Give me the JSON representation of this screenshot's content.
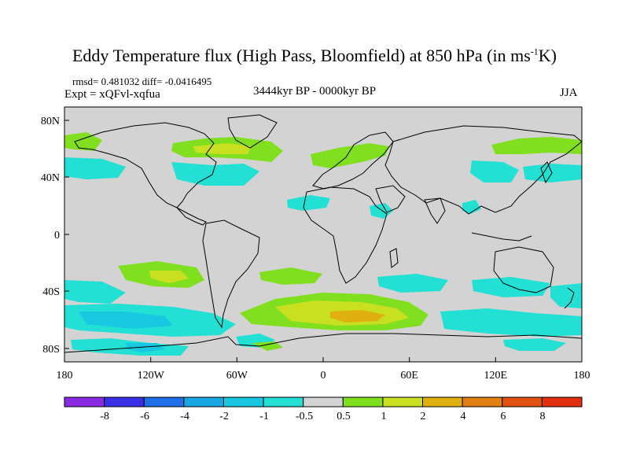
{
  "header": {
    "title": "Eddy Temperature flux (High Pass, Bloomfield) at 850 hPa (in ms",
    "title_sup": "-1",
    "title_end": "K)",
    "stats": "rmsd= 0.481032 diff= -0.0416495",
    "expt": "Expt = xQFvl-xqfua",
    "period": "3444kyr BP - 0000kyr BP",
    "season": "JJA"
  },
  "axes": {
    "x_ticks": [
      "180",
      "120W",
      "60W",
      "0",
      "60E",
      "120E",
      "180"
    ],
    "y_ticks": [
      "80N",
      "40N",
      "0",
      "40S",
      "80S"
    ]
  },
  "colorbar": {
    "labels": [
      "-8",
      "-6",
      "-4",
      "-2",
      "-1",
      "-0.5",
      "0.5",
      "1",
      "2",
      "4",
      "6",
      "8"
    ],
    "colors": [
      "#8a2be2",
      "#3a2ee6",
      "#1f6fe6",
      "#18a6e0",
      "#18c8e0",
      "#22e0d4",
      "#d3d3d3",
      "#80e020",
      "#c8e020",
      "#e0b010",
      "#e08010",
      "#e05010",
      "#e03010"
    ]
  },
  "map": {
    "background_color": "#d3d3d3",
    "land_outline_color": "#000000"
  }
}
